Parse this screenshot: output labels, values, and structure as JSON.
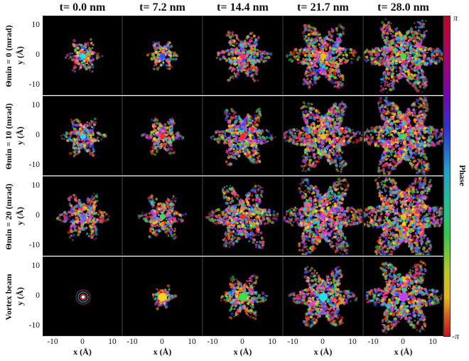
{
  "column_titles": [
    "t= 0.0 nm",
    "t= 7.2 nm",
    "t= 14.4 nm",
    "t= 21.7 nm",
    "t= 28.0 nm"
  ],
  "row_labels": [
    "Θmin = 0 (mrad)",
    "Θmin = 10 (mrad)",
    "Θmin = 20 (mrad)",
    "Vortex beam"
  ],
  "y_axis_label": "y (Å)",
  "x_axis_label": "x (Å)",
  "y_ticks": [
    "10",
    "0",
    "-10"
  ],
  "x_ticks": [
    "-10",
    "0",
    "10"
  ],
  "colorbar": {
    "title": "Phase",
    "top_label": "π",
    "bottom_label": "-π",
    "colors": [
      "#c8001e",
      "#7a00b4",
      "#2838d2",
      "#1fa0d0",
      "#2ec84a",
      "#e8b814",
      "#c8101e"
    ]
  },
  "panel_background": "#000000"
}
